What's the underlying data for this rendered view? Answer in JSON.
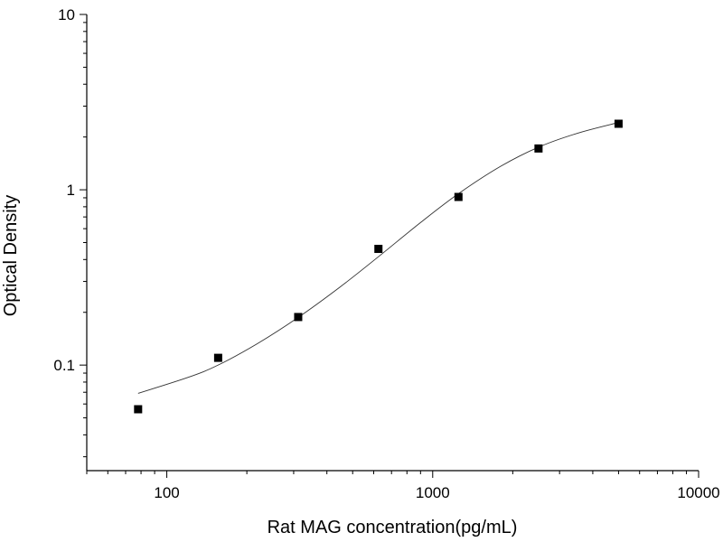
{
  "chart_data": {
    "type": "scatter",
    "xlabel": "Rat MAG concentration(pg/mL)",
    "ylabel": "Optical Density",
    "x_scale": "log",
    "y_scale": "log",
    "xlim": [
      50,
      10000
    ],
    "ylim": [
      0.025,
      10
    ],
    "x_ticks": [
      {
        "value": 100,
        "label": "100"
      },
      {
        "value": 1000,
        "label": "1000"
      },
      {
        "value": 10000,
        "label": "10000"
      }
    ],
    "y_ticks": [
      {
        "value": 0.1,
        "label": "0.1"
      },
      {
        "value": 1,
        "label": "1"
      },
      {
        "value": 10,
        "label": "10"
      }
    ],
    "grid": false,
    "series": [
      {
        "type": "scatter",
        "marker": "square",
        "points": [
          {
            "x": 78,
            "y": 0.056
          },
          {
            "x": 156,
            "y": 0.11
          },
          {
            "x": 312,
            "y": 0.188
          },
          {
            "x": 625,
            "y": 0.46
          },
          {
            "x": 1250,
            "y": 0.91
          },
          {
            "x": 2500,
            "y": 1.72
          },
          {
            "x": 5000,
            "y": 2.38
          }
        ]
      },
      {
        "type": "line",
        "style": "fitted-curve",
        "points": [
          {
            "x": 78,
            "y": 0.069
          },
          {
            "x": 120,
            "y": 0.085
          },
          {
            "x": 156,
            "y": 0.1
          },
          {
            "x": 220,
            "y": 0.133
          },
          {
            "x": 312,
            "y": 0.187
          },
          {
            "x": 450,
            "y": 0.28
          },
          {
            "x": 625,
            "y": 0.415
          },
          {
            "x": 900,
            "y": 0.65
          },
          {
            "x": 1250,
            "y": 0.95
          },
          {
            "x": 1800,
            "y": 1.36
          },
          {
            "x": 2500,
            "y": 1.75
          },
          {
            "x": 3500,
            "y": 2.1
          },
          {
            "x": 5000,
            "y": 2.42
          }
        ]
      }
    ]
  },
  "colors": {
    "axis": "#000000",
    "curve": "#333333",
    "marker": "#000000"
  }
}
